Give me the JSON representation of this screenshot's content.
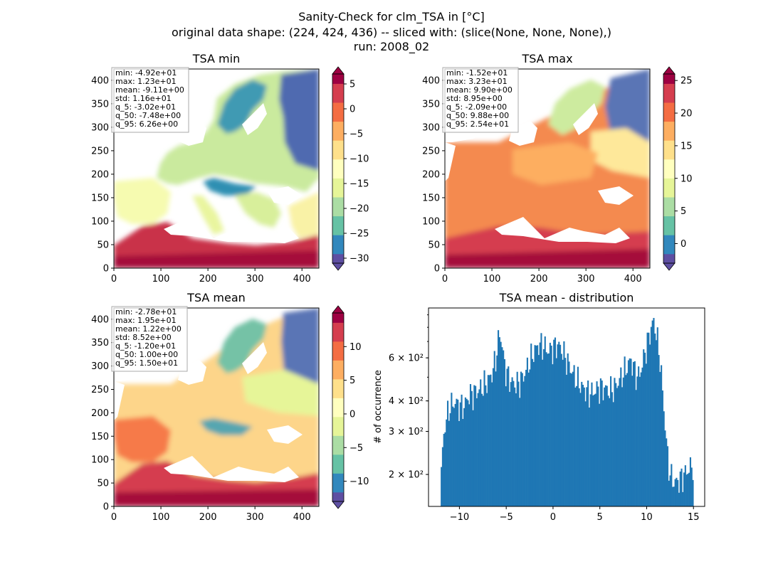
{
  "figure": {
    "title_lines": [
      "Sanity-Check for clm_TSA in [°C]",
      "original data shape: (224, 424, 436) -- sliced with: (slice(None, None, None),)",
      "run: 2008_02"
    ]
  },
  "chart_data": [
    {
      "type": "heatmap",
      "title": "TSA min",
      "xlim": [
        0,
        436
      ],
      "ylim": [
        0,
        424
      ],
      "x_ticks": [
        0,
        100,
        200,
        300,
        400
      ],
      "y_ticks": [
        0,
        50,
        100,
        150,
        200,
        250,
        300,
        350,
        400
      ],
      "colormap": "Spectral_r",
      "colorbar": {
        "min": -31,
        "max": 7,
        "ticks": [
          -30,
          -25,
          -20,
          -15,
          -10,
          -5,
          0,
          5
        ],
        "extend": "both"
      },
      "stats": [
        "min: -4.92e+01",
        "max: 1.23e+01",
        "mean: -9.11e+00",
        "std: 1.16e+01",
        "q_5: -3.02e+01",
        "q_50: -7.48e+00",
        "q_95: 6.26e+00"
      ]
    },
    {
      "type": "heatmap",
      "title": "TSA max",
      "xlim": [
        0,
        436
      ],
      "ylim": [
        0,
        424
      ],
      "x_ticks": [
        0,
        100,
        200,
        300,
        400
      ],
      "y_ticks": [
        0,
        50,
        100,
        150,
        200,
        250,
        300,
        350,
        400
      ],
      "colormap": "Spectral_r",
      "colorbar": {
        "min": -3,
        "max": 26,
        "ticks": [
          0,
          5,
          10,
          15,
          20,
          25
        ],
        "extend": "both"
      },
      "stats": [
        "min: -1.52e+01",
        "max: 3.23e+01",
        "mean: 9.90e+00",
        "std: 8.95e+00",
        "q_5: -2.09e+00",
        "q_50: 9.88e+00",
        "q_95: 2.54e+01"
      ]
    },
    {
      "type": "heatmap",
      "title": "TSA mean",
      "xlim": [
        0,
        436
      ],
      "ylim": [
        0,
        424
      ],
      "x_ticks": [
        0,
        100,
        200,
        300,
        400
      ],
      "y_ticks": [
        0,
        50,
        100,
        150,
        200,
        250,
        300,
        350,
        400
      ],
      "colormap": "Spectral_r",
      "colorbar": {
        "min": -13,
        "max": 15,
        "ticks": [
          -10,
          -5,
          0,
          5,
          10
        ],
        "extend": "both"
      },
      "stats": [
        "min: -2.78e+01",
        "max: 1.95e+01",
        "mean: 1.22e+00",
        "std: 8.52e+00",
        "q_5: -1.20e+01",
        "q_50: 1.00e+00",
        "q_95: 1.50e+01"
      ]
    },
    {
      "type": "bar",
      "title": "TSA mean - distribution",
      "ylabel": "# of occurrence",
      "yscale": "log",
      "xlim": [
        -13.3,
        16.2
      ],
      "ylim": [
        148,
        960
      ],
      "x_ticks": [
        -10,
        -5,
        0,
        5,
        10,
        15
      ],
      "y_ticks": [
        {
          "value": 200,
          "label": "2 × 10²"
        },
        {
          "value": 300,
          "label": "3 × 10²"
        },
        {
          "value": 400,
          "label": "4 × 10²"
        },
        {
          "value": 600,
          "label": "6 × 10²"
        }
      ],
      "color": "#1f77b4",
      "bin_start": -12.0,
      "bin_end": 15.0,
      "profile": [
        [
          -12.0,
          180
        ],
        [
          -11.8,
          250
        ],
        [
          -11.6,
          310
        ],
        [
          -11.3,
          350
        ],
        [
          -11.0,
          380
        ],
        [
          -10.5,
          395
        ],
        [
          -10.0,
          380
        ],
        [
          -9.5,
          380
        ],
        [
          -9.0,
          420
        ],
        [
          -8.5,
          430
        ],
        [
          -8.0,
          440
        ],
        [
          -7.5,
          460
        ],
        [
          -7.0,
          480
        ],
        [
          -6.5,
          520
        ],
        [
          -6.1,
          600
        ],
        [
          -5.9,
          680
        ],
        [
          -5.7,
          760
        ],
        [
          -5.5,
          700
        ],
        [
          -5.3,
          600
        ],
        [
          -5.0,
          520
        ],
        [
          -4.5,
          480
        ],
        [
          -4.0,
          465
        ],
        [
          -3.5,
          480
        ],
        [
          -3.0,
          520
        ],
        [
          -2.5,
          580
        ],
        [
          -2.0,
          640
        ],
        [
          -1.5,
          680
        ],
        [
          -1.0,
          670
        ],
        [
          -0.5,
          640
        ],
        [
          0.0,
          660
        ],
        [
          0.5,
          680
        ],
        [
          1.0,
          640
        ],
        [
          1.5,
          580
        ],
        [
          2.0,
          530
        ],
        [
          2.5,
          490
        ],
        [
          3.0,
          460
        ],
        [
          3.5,
          440
        ],
        [
          4.0,
          430
        ],
        [
          4.5,
          440
        ],
        [
          5.0,
          455
        ],
        [
          5.5,
          450
        ],
        [
          6.0,
          440
        ],
        [
          6.5,
          450
        ],
        [
          7.0,
          480
        ],
        [
          7.5,
          520
        ],
        [
          8.0,
          560
        ],
        [
          8.3,
          590
        ],
        [
          8.7,
          530
        ],
        [
          9.0,
          500
        ],
        [
          9.3,
          520
        ],
        [
          9.6,
          580
        ],
        [
          9.9,
          650
        ],
        [
          10.2,
          720
        ],
        [
          10.5,
          800
        ],
        [
          10.7,
          850
        ],
        [
          10.9,
          800
        ],
        [
          11.1,
          720
        ],
        [
          11.4,
          600
        ],
        [
          11.7,
          430
        ],
        [
          12.0,
          300
        ],
        [
          12.3,
          220
        ],
        [
          12.6,
          195
        ],
        [
          13.0,
          185
        ],
        [
          13.5,
          190
        ],
        [
          14.0,
          200
        ],
        [
          14.5,
          210
        ],
        [
          15.0,
          220
        ]
      ]
    }
  ]
}
